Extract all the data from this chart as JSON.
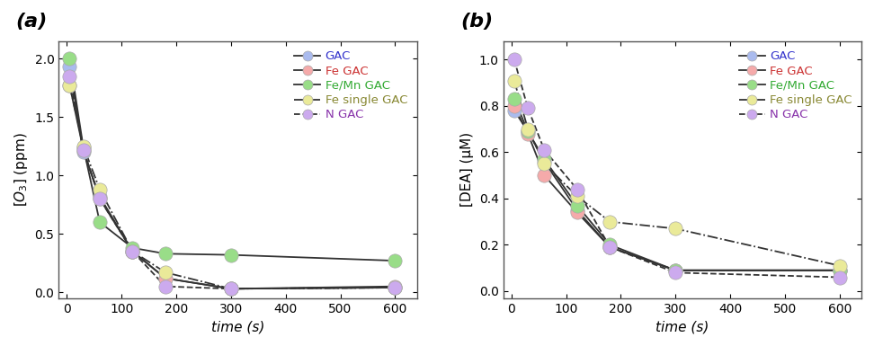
{
  "panel_a": {
    "ylabel": "$[O_3]$ (ppm)",
    "xlabel": "time (s)",
    "ylim": [
      -0.05,
      2.15
    ],
    "xlim": [
      -15,
      640
    ],
    "yticks": [
      0.0,
      0.5,
      1.0,
      1.5,
      2.0
    ],
    "xticks": [
      0,
      100,
      200,
      300,
      400,
      500,
      600
    ],
    "series": [
      {
        "label": "GAC",
        "color": "#aabbee",
        "linestyle": "-",
        "lcolor": "#333333",
        "x": [
          5,
          30,
          60,
          120,
          180,
          300,
          600
        ],
        "y": [
          1.93,
          1.2,
          0.82,
          0.35,
          0.12,
          0.03,
          0.04
        ]
      },
      {
        "label": "Fe GAC",
        "color": "#f5aaaa",
        "linestyle": "-",
        "lcolor": "#333333",
        "x": [
          5,
          30,
          60,
          120,
          180,
          300,
          600
        ],
        "y": [
          1.77,
          1.22,
          0.8,
          0.35,
          0.12,
          0.03,
          0.05
        ]
      },
      {
        "label": "Fe/Mn GAC",
        "color": "#99dd88",
        "linestyle": "-",
        "lcolor": "#333333",
        "x": [
          5,
          30,
          60,
          120,
          180,
          300,
          600
        ],
        "y": [
          2.0,
          1.24,
          0.6,
          0.38,
          0.33,
          0.32,
          0.27
        ]
      },
      {
        "label": "Fe single GAC",
        "color": "#eaea99",
        "linestyle": "-.",
        "lcolor": "#333333",
        "x": [
          5,
          30,
          60,
          120,
          180,
          300,
          600
        ],
        "y": [
          1.77,
          1.25,
          0.88,
          0.35,
          0.17,
          0.03,
          0.04
        ]
      },
      {
        "label": "N GAC",
        "color": "#ccaaee",
        "linestyle": "--",
        "lcolor": "#333333",
        "x": [
          5,
          30,
          60,
          120,
          180,
          300,
          600
        ],
        "y": [
          1.85,
          1.22,
          0.8,
          0.35,
          0.05,
          0.03,
          0.04
        ]
      }
    ]
  },
  "panel_b": {
    "ylabel": "[DEA] (μM)",
    "xlabel": "time (s)",
    "ylim": [
      -0.03,
      1.08
    ],
    "xlim": [
      -15,
      640
    ],
    "yticks": [
      0.0,
      0.2,
      0.4,
      0.6,
      0.8,
      1.0
    ],
    "xticks": [
      0,
      100,
      200,
      300,
      400,
      500,
      600
    ],
    "series": [
      {
        "label": "GAC",
        "color": "#aabbee",
        "linestyle": "-",
        "lcolor": "#333333",
        "x": [
          5,
          30,
          60,
          120,
          180,
          300,
          600
        ],
        "y": [
          0.78,
          0.69,
          0.56,
          0.35,
          0.19,
          0.09,
          0.09
        ]
      },
      {
        "label": "Fe GAC",
        "color": "#f5aaaa",
        "linestyle": "-",
        "lcolor": "#333333",
        "x": [
          5,
          30,
          60,
          120,
          180,
          300,
          600
        ],
        "y": [
          0.8,
          0.68,
          0.5,
          0.34,
          0.19,
          0.09,
          0.09
        ]
      },
      {
        "label": "Fe/Mn GAC",
        "color": "#99dd88",
        "linestyle": "-",
        "lcolor": "#333333",
        "x": [
          5,
          30,
          60,
          120,
          180,
          300,
          600
        ],
        "y": [
          0.83,
          0.69,
          0.57,
          0.37,
          0.2,
          0.09,
          0.09
        ]
      },
      {
        "label": "Fe single GAC",
        "color": "#eaea99",
        "linestyle": "-.",
        "lcolor": "#333333",
        "x": [
          5,
          30,
          60,
          120,
          180,
          300,
          600
        ],
        "y": [
          0.91,
          0.7,
          0.55,
          0.41,
          0.3,
          0.27,
          0.11
        ]
      },
      {
        "label": "N GAC",
        "color": "#ccaaee",
        "linestyle": "--",
        "lcolor": "#333333",
        "x": [
          5,
          30,
          60,
          120,
          180,
          300,
          600
        ],
        "y": [
          1.0,
          0.79,
          0.61,
          0.44,
          0.19,
          0.08,
          0.06
        ]
      }
    ]
  },
  "legend_label_colors": {
    "GAC": "#3333cc",
    "Fe GAC": "#cc3333",
    "Fe/Mn GAC": "#33aa33",
    "Fe single GAC": "#888833",
    "N GAC": "#8833aa"
  },
  "marker_size": 11,
  "line_width": 1.3,
  "marker_edge_color": "#aaaaaa",
  "marker_edge_width": 0.5,
  "background_color": "#ffffff",
  "panel_label_fontsize": 16,
  "axis_label_fontsize": 11,
  "tick_fontsize": 10,
  "legend_fontsize": 9.5
}
